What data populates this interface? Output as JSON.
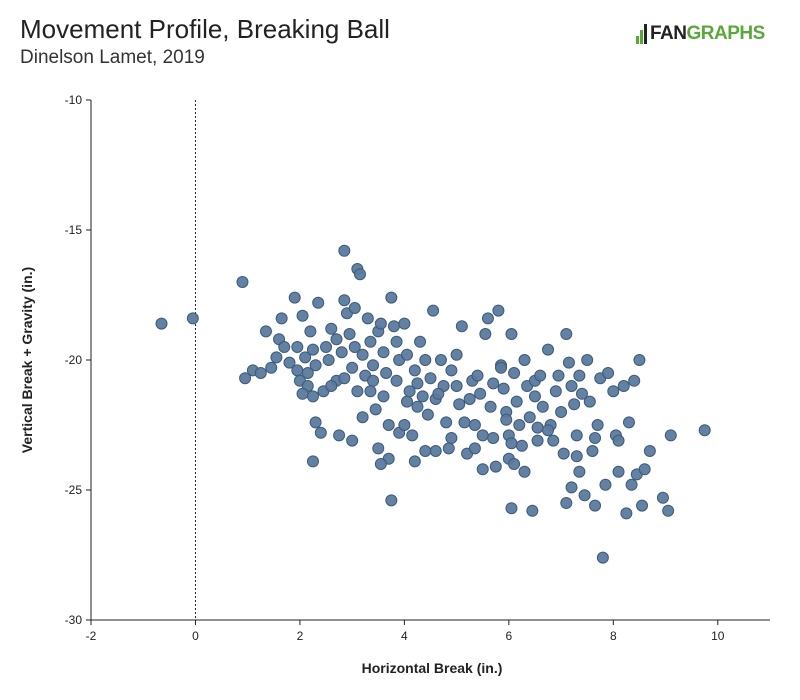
{
  "header": {
    "title": "Movement Profile, Breaking Ball",
    "subtitle": "Dinelson Lamet, 2019",
    "logo_prefix": ".",
    "logo_fan": "FAN",
    "logo_graphs": "GRAPHS"
  },
  "colors": {
    "point_fill": "#5b7a9e",
    "point_stroke": "#3f5a7a",
    "axis": "#222222",
    "logo_green": "#5aa83a"
  },
  "chart_data": {
    "type": "scatter",
    "title": "Movement Profile, Breaking Ball",
    "subtitle": "Dinelson Lamet, 2019",
    "xlabel": "Horizontal Break (in.)",
    "ylabel": "Vertical Break + Gravity (in.)",
    "xlim": [
      -2,
      11
    ],
    "ylim": [
      -30,
      -10
    ],
    "y_inverted": true,
    "xticks": [
      -2,
      0,
      2,
      4,
      6,
      8,
      10
    ],
    "yticks": [
      -10,
      -15,
      -20,
      -25,
      -30
    ],
    "reference_line_x": 0,
    "grid": false,
    "points": [
      [
        -0.65,
        -18.6
      ],
      [
        -0.05,
        -18.4
      ],
      [
        0.9,
        -17.0
      ],
      [
        0.95,
        -20.7
      ],
      [
        1.1,
        -20.4
      ],
      [
        1.25,
        -20.5
      ],
      [
        1.35,
        -18.9
      ],
      [
        1.45,
        -20.3
      ],
      [
        1.55,
        -19.9
      ],
      [
        1.6,
        -19.2
      ],
      [
        1.65,
        -18.4
      ],
      [
        1.7,
        -19.5
      ],
      [
        1.8,
        -20.1
      ],
      [
        1.9,
        -17.6
      ],
      [
        1.95,
        -20.4
      ],
      [
        2.0,
        -20.8
      ],
      [
        2.05,
        -18.3
      ],
      [
        2.1,
        -19.9
      ],
      [
        2.15,
        -20.5
      ],
      [
        2.2,
        -18.9
      ],
      [
        2.25,
        -19.6
      ],
      [
        2.3,
        -20.2
      ],
      [
        2.35,
        -17.8
      ],
      [
        2.15,
        -21.0
      ],
      [
        2.25,
        -21.4
      ],
      [
        2.3,
        -22.4
      ],
      [
        2.25,
        -23.9
      ],
      [
        2.45,
        -21.2
      ],
      [
        2.5,
        -19.5
      ],
      [
        2.55,
        -20.0
      ],
      [
        2.4,
        -22.8
      ],
      [
        2.6,
        -18.8
      ],
      [
        2.7,
        -19.2
      ],
      [
        2.7,
        -20.8
      ],
      [
        2.75,
        -22.9
      ],
      [
        2.8,
        -19.7
      ],
      [
        2.85,
        -17.7
      ],
      [
        2.9,
        -18.2
      ],
      [
        2.85,
        -15.8
      ],
      [
        2.95,
        -19.0
      ],
      [
        3.0,
        -20.3
      ],
      [
        3.05,
        -18.0
      ],
      [
        3.05,
        -19.5
      ],
      [
        3.1,
        -21.2
      ],
      [
        3.1,
        -16.5
      ],
      [
        3.15,
        -16.7
      ],
      [
        3.2,
        -19.8
      ],
      [
        3.25,
        -20.6
      ],
      [
        3.3,
        -18.4
      ],
      [
        3.35,
        -19.3
      ],
      [
        3.4,
        -20.8
      ],
      [
        3.45,
        -21.9
      ],
      [
        3.5,
        -18.9
      ],
      [
        3.55,
        -18.6
      ],
      [
        3.6,
        -19.7
      ],
      [
        3.6,
        -21.4
      ],
      [
        3.65,
        -20.5
      ],
      [
        3.7,
        -22.5
      ],
      [
        3.7,
        -23.8
      ],
      [
        3.75,
        -17.6
      ],
      [
        3.8,
        -18.7
      ],
      [
        3.85,
        -19.3
      ],
      [
        3.9,
        -20.0
      ],
      [
        3.9,
        -22.8
      ],
      [
        3.75,
        -25.4
      ],
      [
        4.0,
        -18.6
      ],
      [
        4.05,
        -19.8
      ],
      [
        4.05,
        -21.6
      ],
      [
        4.1,
        -21.2
      ],
      [
        4.15,
        -22.9
      ],
      [
        4.2,
        -20.4
      ],
      [
        4.25,
        -20.9
      ],
      [
        4.3,
        -19.3
      ],
      [
        4.35,
        -21.4
      ],
      [
        4.4,
        -20.0
      ],
      [
        4.45,
        -22.1
      ],
      [
        4.5,
        -20.7
      ],
      [
        4.55,
        -18.1
      ],
      [
        4.6,
        -21.5
      ],
      [
        4.6,
        -23.5
      ],
      [
        4.7,
        -20.0
      ],
      [
        4.75,
        -21.0
      ],
      [
        4.8,
        -22.4
      ],
      [
        4.85,
        -23.4
      ],
      [
        4.9,
        -20.4
      ],
      [
        5.0,
        -19.8
      ],
      [
        5.05,
        -21.7
      ],
      [
        5.1,
        -18.7
      ],
      [
        5.15,
        -22.4
      ],
      [
        5.2,
        -23.6
      ],
      [
        5.3,
        -20.8
      ],
      [
        5.35,
        -22.5
      ],
      [
        5.45,
        -21.3
      ],
      [
        5.5,
        -22.9
      ],
      [
        5.5,
        -24.2
      ],
      [
        5.55,
        -19.0
      ],
      [
        5.6,
        -18.4
      ],
      [
        5.65,
        -21.8
      ],
      [
        5.7,
        -23.0
      ],
      [
        5.75,
        -24.1
      ],
      [
        5.8,
        -18.1
      ],
      [
        5.85,
        -20.2
      ],
      [
        5.9,
        -21.1
      ],
      [
        5.95,
        -22.0
      ],
      [
        6.0,
        -22.9
      ],
      [
        6.0,
        -23.8
      ],
      [
        6.05,
        -19.0
      ],
      [
        6.05,
        -25.7
      ],
      [
        6.1,
        -20.5
      ],
      [
        6.15,
        -21.6
      ],
      [
        6.2,
        -22.5
      ],
      [
        6.25,
        -23.3
      ],
      [
        6.3,
        -20.0
      ],
      [
        6.35,
        -21.0
      ],
      [
        6.4,
        -22.2
      ],
      [
        6.45,
        -25.8
      ],
      [
        6.5,
        -20.8
      ],
      [
        6.55,
        -23.1
      ],
      [
        6.65,
        -21.8
      ],
      [
        6.75,
        -19.6
      ],
      [
        6.8,
        -22.5
      ],
      [
        6.85,
        -23.1
      ],
      [
        6.9,
        -21.2
      ],
      [
        7.0,
        -22.0
      ],
      [
        7.05,
        -23.6
      ],
      [
        7.1,
        -19.0
      ],
      [
        7.1,
        -25.5
      ],
      [
        7.15,
        -20.1
      ],
      [
        7.2,
        -24.9
      ],
      [
        7.25,
        -21.7
      ],
      [
        7.3,
        -22.9
      ],
      [
        7.35,
        -24.3
      ],
      [
        7.4,
        -21.3
      ],
      [
        7.45,
        -25.2
      ],
      [
        7.5,
        -20.0
      ],
      [
        7.55,
        -21.6
      ],
      [
        7.6,
        -23.5
      ],
      [
        7.65,
        -25.6
      ],
      [
        7.7,
        -22.5
      ],
      [
        7.75,
        -20.7
      ],
      [
        7.8,
        -27.6
      ],
      [
        7.85,
        -24.8
      ],
      [
        7.9,
        -20.5
      ],
      [
        8.0,
        -21.2
      ],
      [
        8.05,
        -22.9
      ],
      [
        8.1,
        -24.3
      ],
      [
        8.2,
        -21.0
      ],
      [
        8.25,
        -25.9
      ],
      [
        8.3,
        -22.4
      ],
      [
        8.35,
        -24.8
      ],
      [
        8.4,
        -20.8
      ],
      [
        8.45,
        -24.4
      ],
      [
        8.5,
        -20.0
      ],
      [
        8.55,
        -25.6
      ],
      [
        8.6,
        -24.2
      ],
      [
        8.7,
        -23.5
      ],
      [
        8.95,
        -25.3
      ],
      [
        9.05,
        -25.8
      ],
      [
        9.1,
        -22.9
      ],
      [
        9.75,
        -22.7
      ],
      [
        4.25,
        -21.8
      ],
      [
        4.4,
        -23.5
      ],
      [
        3.55,
        -24.0
      ],
      [
        3.0,
        -23.1
      ],
      [
        2.6,
        -21.0
      ],
      [
        5.0,
        -21.0
      ],
      [
        5.25,
        -21.5
      ],
      [
        6.3,
        -24.3
      ],
      [
        6.6,
        -20.6
      ],
      [
        6.95,
        -20.6
      ],
      [
        7.35,
        -20.6
      ],
      [
        5.85,
        -20.3
      ],
      [
        5.4,
        -20.6
      ],
      [
        3.4,
        -20.2
      ],
      [
        1.95,
        -19.5
      ],
      [
        2.05,
        -21.3
      ],
      [
        3.5,
        -23.4
      ],
      [
        3.2,
        -22.2
      ],
      [
        3.35,
        -21.2
      ],
      [
        4.0,
        -22.5
      ],
      [
        4.65,
        -21.3
      ],
      [
        4.9,
        -23.0
      ],
      [
        5.7,
        -20.9
      ],
      [
        6.05,
        -23.2
      ],
      [
        6.5,
        -21.4
      ],
      [
        6.75,
        -22.7
      ],
      [
        7.2,
        -21.0
      ],
      [
        7.65,
        -23.0
      ],
      [
        8.1,
        -23.1
      ],
      [
        6.1,
        -24.0
      ],
      [
        5.35,
        -23.4
      ],
      [
        4.2,
        -23.9
      ],
      [
        3.85,
        -20.8
      ],
      [
        2.85,
        -20.7
      ],
      [
        5.95,
        -22.3
      ],
      [
        6.55,
        -22.6
      ],
      [
        7.3,
        -23.7
      ]
    ]
  }
}
